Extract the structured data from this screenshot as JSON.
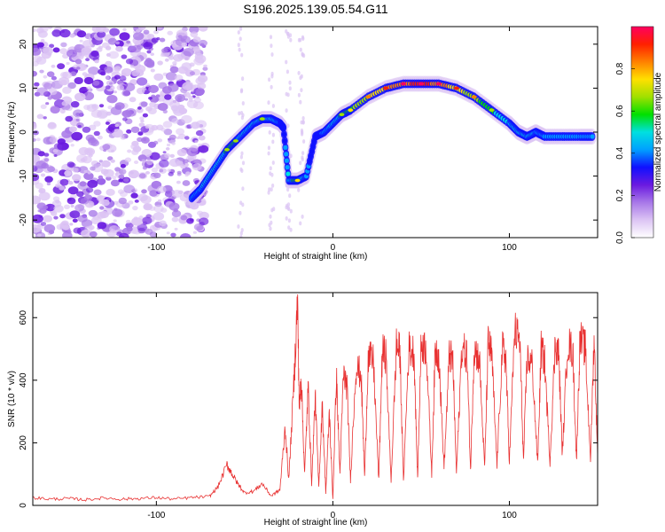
{
  "figure": {
    "title": "S196.2025.139.05.54.G11"
  },
  "chart_data": [
    {
      "type": "heatmap",
      "xlabel": "Height of straight line (km)",
      "ylabel": "Frequency (Hz)",
      "xlim": [
        -170,
        150
      ],
      "ylim": [
        -24,
        24
      ],
      "x_ticks": [
        -100,
        0,
        100
      ],
      "y_ticks": [
        -20,
        -10,
        0,
        10,
        20
      ],
      "colorbar": {
        "label": "Normalized spectral amplitude",
        "range": [
          0,
          1
        ],
        "ticks": [
          0,
          0.2,
          0.4,
          0.6,
          0.8
        ],
        "colors": [
          "#ffffff",
          "#dcc4f4",
          "#a878e8",
          "#6a1ae0",
          "#1010ff",
          "#00a0ff",
          "#00e0e0",
          "#00e000",
          "#a0e000",
          "#ffe000",
          "#ff8000",
          "#ff2000",
          "#ff0060"
        ]
      },
      "trace": {
        "x": [
          -80,
          -75,
          -70,
          -65,
          -60,
          -55,
          -50,
          -45,
          -40,
          -35,
          -30,
          -28,
          -25,
          -20,
          -15,
          -10,
          -5,
          0,
          5,
          10,
          20,
          30,
          40,
          50,
          60,
          70,
          80,
          90,
          100,
          105,
          110,
          115,
          120,
          130,
          140,
          148
        ],
        "y": [
          -15,
          -13,
          -10,
          -7,
          -4,
          -2,
          0,
          2,
          3,
          3,
          2,
          1,
          -11,
          -11,
          -10,
          -1,
          0,
          2,
          4,
          5,
          8,
          10,
          11,
          11,
          11,
          10,
          8,
          5,
          2,
          0,
          -1,
          0,
          -1,
          -1,
          -1,
          -1
        ],
        "amplitude": [
          0.4,
          0.45,
          0.5,
          0.5,
          0.55,
          0.55,
          0.5,
          0.5,
          0.55,
          0.5,
          0.4,
          0.3,
          0.5,
          0.6,
          0.4,
          0.3,
          0.4,
          0.5,
          0.55,
          0.6,
          0.7,
          0.8,
          0.85,
          0.9,
          0.85,
          0.75,
          0.65,
          0.55,
          0.5,
          0.5,
          0.5,
          0.45,
          0.45,
          0.45,
          0.45,
          0.4
        ]
      },
      "noise": {
        "x_range": [
          -170,
          -72
        ],
        "y_range": [
          -24,
          24
        ]
      }
    },
    {
      "type": "line",
      "xlabel": "Height of straight line (km)",
      "ylabel": "SNR (10 * v/v)",
      "xlim": [
        -170,
        150
      ],
      "ylim": [
        0,
        680
      ],
      "x_ticks": [
        -100,
        0,
        100
      ],
      "y_ticks": [
        0,
        200,
        400,
        600
      ],
      "line_color": "#e83030",
      "series": [
        {
          "x": [
            -170,
            -160,
            -150,
            -140,
            -130,
            -120,
            -110,
            -100,
            -90,
            -80,
            -70,
            -65,
            -60,
            -57,
            -54,
            -50,
            -45,
            -40,
            -35,
            -30,
            -27,
            -25,
            -22,
            -20,
            -19,
            -18,
            -16,
            -14,
            -12,
            -10,
            -8,
            -6,
            -4,
            -2,
            0,
            2,
            4,
            6,
            8,
            10,
            13,
            16,
            18,
            20,
            23,
            26,
            28,
            30,
            33,
            36,
            38,
            40,
            43,
            46,
            48,
            50,
            53,
            56,
            58,
            60,
            63,
            66,
            68,
            70,
            73,
            76,
            78,
            80,
            83,
            86,
            88,
            90,
            93,
            96,
            98,
            100,
            103,
            106,
            108,
            110,
            113,
            116,
            118,
            120,
            123,
            126,
            128,
            130,
            133,
            136,
            138,
            140,
            143,
            146,
            148,
            150
          ],
          "y": [
            25,
            20,
            22,
            18,
            24,
            20,
            22,
            25,
            20,
            25,
            28,
            60,
            130,
            100,
            70,
            40,
            45,
            70,
            30,
            50,
            250,
            80,
            400,
            660,
            300,
            420,
            100,
            380,
            70,
            350,
            60,
            320,
            40,
            300,
            20,
            420,
            100,
            420,
            380,
            80,
            440,
            420,
            90,
            470,
            460,
            80,
            490,
            480,
            80,
            510,
            490,
            80,
            500,
            490,
            80,
            520,
            500,
            100,
            500,
            480,
            120,
            480,
            460,
            100,
            500,
            480,
            110,
            500,
            470,
            120,
            520,
            480,
            130,
            500,
            470,
            140,
            560,
            520,
            140,
            470,
            450,
            130,
            500,
            460,
            140,
            520,
            480,
            160,
            520,
            490,
            140,
            530,
            500,
            150,
            540,
            150
          ]
        }
      ]
    }
  ]
}
